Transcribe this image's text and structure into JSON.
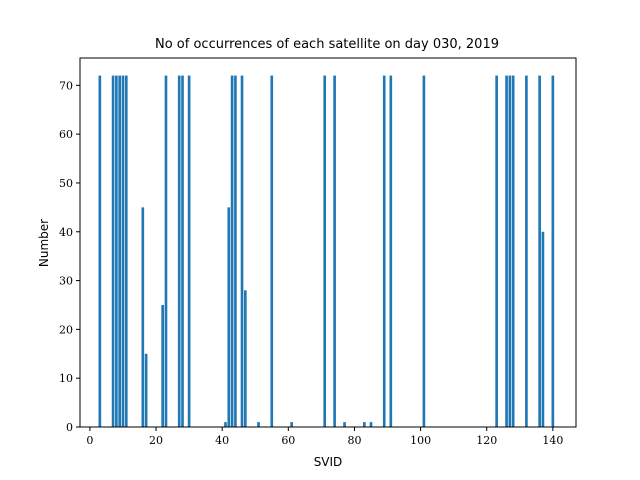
{
  "chart_data": {
    "type": "bar",
    "title": "No of occurrences of each satellite on day 030, 2019",
    "xlabel": "SVID",
    "ylabel": "Number",
    "xlim": [
      -3,
      147
    ],
    "ylim": [
      0,
      75.6
    ],
    "xticks": [
      0,
      20,
      40,
      60,
      80,
      100,
      120,
      140
    ],
    "yticks": [
      0,
      10,
      20,
      30,
      40,
      50,
      60,
      70
    ],
    "bar_color": "#1f77b4",
    "grid": false,
    "legend": "none",
    "points": [
      {
        "x": 3,
        "y": 72
      },
      {
        "x": 7,
        "y": 72
      },
      {
        "x": 8,
        "y": 72
      },
      {
        "x": 9,
        "y": 72
      },
      {
        "x": 10,
        "y": 72
      },
      {
        "x": 11,
        "y": 72
      },
      {
        "x": 16,
        "y": 45
      },
      {
        "x": 17,
        "y": 15
      },
      {
        "x": 22,
        "y": 25
      },
      {
        "x": 23,
        "y": 72
      },
      {
        "x": 27,
        "y": 72
      },
      {
        "x": 28,
        "y": 72
      },
      {
        "x": 30,
        "y": 72
      },
      {
        "x": 41,
        "y": 1
      },
      {
        "x": 42,
        "y": 45
      },
      {
        "x": 43,
        "y": 72
      },
      {
        "x": 44,
        "y": 72
      },
      {
        "x": 46,
        "y": 72
      },
      {
        "x": 47,
        "y": 28
      },
      {
        "x": 51,
        "y": 1
      },
      {
        "x": 55,
        "y": 72
      },
      {
        "x": 61,
        "y": 1
      },
      {
        "x": 71,
        "y": 72
      },
      {
        "x": 74,
        "y": 72
      },
      {
        "x": 77,
        "y": 1
      },
      {
        "x": 83,
        "y": 1
      },
      {
        "x": 85,
        "y": 1
      },
      {
        "x": 89,
        "y": 72
      },
      {
        "x": 91,
        "y": 72
      },
      {
        "x": 101,
        "y": 72
      },
      {
        "x": 123,
        "y": 72
      },
      {
        "x": 126,
        "y": 72
      },
      {
        "x": 127,
        "y": 72
      },
      {
        "x": 128,
        "y": 72
      },
      {
        "x": 132,
        "y": 72
      },
      {
        "x": 136,
        "y": 72
      },
      {
        "x": 137,
        "y": 40
      },
      {
        "x": 140,
        "y": 72
      }
    ]
  }
}
